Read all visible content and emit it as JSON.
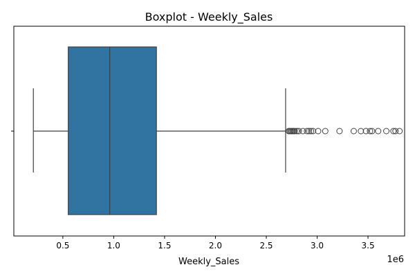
{
  "chart_data": {
    "type": "boxplot",
    "title": "Boxplot - Weekly_Sales",
    "xlabel": "Weekly_Sales",
    "ylabel": "",
    "scale_label": "1e6",
    "xlim": [
      0.018,
      3.86
    ],
    "x_ticks": [
      0.5,
      1.0,
      1.5,
      2.0,
      2.5,
      3.0,
      3.5
    ],
    "x_tick_labels": [
      "0.5",
      "1.0",
      "1.5",
      "2.0",
      "2.5",
      "3.0",
      "3.5"
    ],
    "y_tick_labels": [
      ""
    ],
    "grid": false,
    "legend": "none",
    "box": {
      "whisker_low": 0.21,
      "q1": 0.553,
      "median": 0.961,
      "q3": 1.42,
      "whisker_high": 2.69
    },
    "outliers": [
      2.72,
      2.73,
      2.74,
      2.75,
      2.76,
      2.77,
      2.78,
      2.8,
      2.82,
      2.86,
      2.9,
      2.92,
      2.94,
      2.96,
      3.01,
      3.08,
      3.22,
      3.36,
      3.43,
      3.48,
      3.52,
      3.54,
      3.6,
      3.68,
      3.75,
      3.77,
      3.81
    ],
    "colors": {
      "box": "#3274a1",
      "line": "#3f3f3f",
      "axis": "#000000"
    }
  }
}
